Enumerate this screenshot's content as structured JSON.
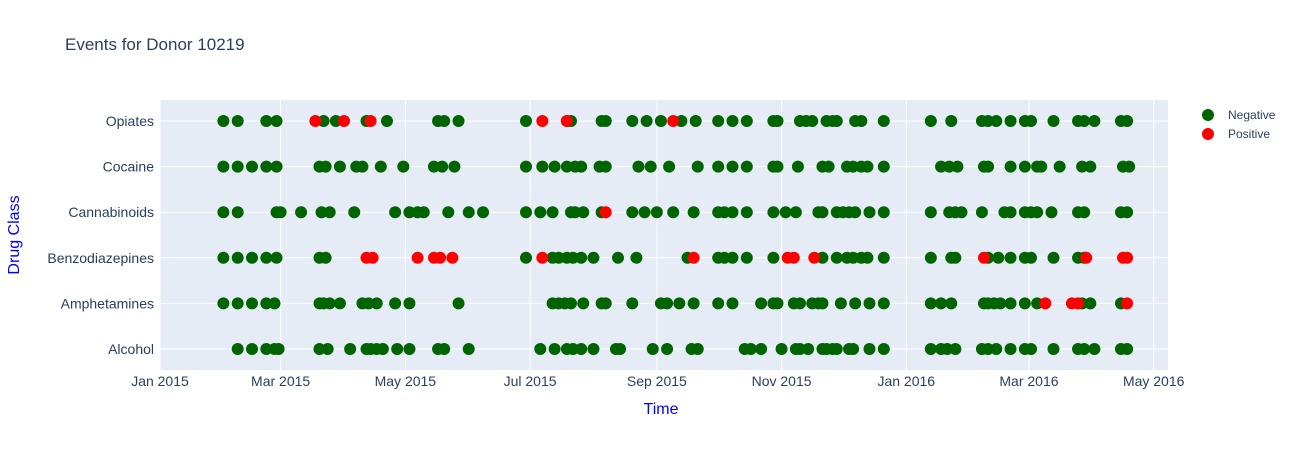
{
  "chart_data": {
    "type": "scatter",
    "title": "Events for Donor 10219",
    "xlabel": "Time",
    "ylabel": "Drug Class",
    "xlim": [
      "2015-01-01",
      "2016-05-08"
    ],
    "x_ticks": [
      "2015-01-01",
      "2015-03-01",
      "2015-05-01",
      "2015-07-01",
      "2015-09-01",
      "2015-11-01",
      "2016-01-01",
      "2016-03-01",
      "2016-05-01"
    ],
    "x_tick_labels": [
      "Jan 2015",
      "Mar 2015",
      "May 2015",
      "Jul 2015",
      "Sep 2015",
      "Nov 2015",
      "Jan 2016",
      "Mar 2016",
      "May 2016"
    ],
    "categories": [
      "Alcohol",
      "Amphetamines",
      "Benzodiazepines",
      "Cannabinoids",
      "Cocaine",
      "Opiates"
    ],
    "legend_position": "top-right",
    "grid": true,
    "colors": {
      "Negative": "#006400",
      "Positive": "#ff0000",
      "plot_bg": "#e5ecf6",
      "axis_title": "#0000ff"
    },
    "series": [
      {
        "name": "Negative",
        "points": {
          "Opiates": [
            "2015-02-01",
            "2015-02-08",
            "2015-02-22",
            "2015-02-27",
            "2015-03-22",
            "2015-03-28",
            "2015-04-12",
            "2015-04-22",
            "2015-05-17",
            "2015-05-20",
            "2015-05-27",
            "2015-06-29",
            "2015-07-19",
            "2015-07-21",
            "2015-08-05",
            "2015-08-07",
            "2015-08-20",
            "2015-08-27",
            "2015-09-03",
            "2015-09-13",
            "2015-09-20",
            "2015-10-01",
            "2015-10-08",
            "2015-10-15",
            "2015-10-28",
            "2015-10-30",
            "2015-11-10",
            "2015-11-13",
            "2015-11-16",
            "2015-11-23",
            "2015-11-26",
            "2015-11-28",
            "2015-12-07",
            "2015-12-10",
            "2015-12-21",
            "2016-01-13",
            "2016-01-23",
            "2016-02-07",
            "2016-02-10",
            "2016-02-14",
            "2016-02-21",
            "2016-02-28",
            "2016-03-02",
            "2016-03-13",
            "2016-03-25",
            "2016-03-28",
            "2016-04-02",
            "2016-04-15",
            "2016-04-18"
          ],
          "Cocaine": [
            "2015-02-01",
            "2015-02-08",
            "2015-02-15",
            "2015-02-22",
            "2015-02-27",
            "2015-03-20",
            "2015-03-23",
            "2015-03-30",
            "2015-04-07",
            "2015-04-10",
            "2015-04-19",
            "2015-04-30",
            "2015-05-15",
            "2015-05-19",
            "2015-05-25",
            "2015-06-29",
            "2015-07-07",
            "2015-07-13",
            "2015-07-19",
            "2015-07-23",
            "2015-07-26",
            "2015-08-04",
            "2015-08-07",
            "2015-08-23",
            "2015-08-29",
            "2015-09-07",
            "2015-09-21",
            "2015-10-01",
            "2015-10-08",
            "2015-10-15",
            "2015-10-28",
            "2015-10-30",
            "2015-11-09",
            "2015-11-21",
            "2015-11-24",
            "2015-12-03",
            "2015-12-06",
            "2015-12-10",
            "2015-12-13",
            "2015-12-21",
            "2016-01-18",
            "2016-01-22",
            "2016-01-26",
            "2016-02-08",
            "2016-02-10",
            "2016-02-21",
            "2016-02-28",
            "2016-03-05",
            "2016-03-07",
            "2016-03-16",
            "2016-03-27",
            "2016-03-31",
            "2016-04-16",
            "2016-04-19"
          ],
          "Cannabinoids": [
            "2015-02-01",
            "2015-02-08",
            "2015-02-27",
            "2015-03-01",
            "2015-03-11",
            "2015-03-21",
            "2015-03-25",
            "2015-04-06",
            "2015-04-26",
            "2015-05-03",
            "2015-05-07",
            "2015-05-10",
            "2015-05-22",
            "2015-06-01",
            "2015-06-08",
            "2015-06-29",
            "2015-07-06",
            "2015-07-12",
            "2015-07-21",
            "2015-07-23",
            "2015-07-27",
            "2015-08-05",
            "2015-08-20",
            "2015-08-26",
            "2015-09-01",
            "2015-09-09",
            "2015-09-19",
            "2015-10-01",
            "2015-10-04",
            "2015-10-08",
            "2015-10-15",
            "2015-10-28",
            "2015-11-03",
            "2015-11-08",
            "2015-11-19",
            "2015-11-21",
            "2015-11-28",
            "2015-12-01",
            "2015-12-04",
            "2015-12-07",
            "2015-12-14",
            "2015-12-21",
            "2016-01-13",
            "2016-01-22",
            "2016-01-25",
            "2016-01-28",
            "2016-02-07",
            "2016-02-18",
            "2016-02-21",
            "2016-02-28",
            "2016-03-02",
            "2016-03-05",
            "2016-03-12",
            "2016-03-25",
            "2016-03-28",
            "2016-04-15",
            "2016-04-18"
          ],
          "Benzodiazepines": [
            "2015-02-01",
            "2015-02-08",
            "2015-02-15",
            "2015-02-22",
            "2015-02-27",
            "2015-03-20",
            "2015-03-23",
            "2015-06-29",
            "2015-07-12",
            "2015-07-15",
            "2015-07-19",
            "2015-07-22",
            "2015-07-26",
            "2015-08-01",
            "2015-08-13",
            "2015-08-22",
            "2015-09-16",
            "2015-10-01",
            "2015-10-04",
            "2015-10-08",
            "2015-10-15",
            "2015-10-28",
            "2015-11-21",
            "2015-11-28",
            "2015-12-03",
            "2015-12-06",
            "2015-12-10",
            "2015-12-13",
            "2015-12-21",
            "2016-01-13",
            "2016-01-23",
            "2016-01-25",
            "2016-02-10",
            "2016-02-15",
            "2016-02-21",
            "2016-02-28",
            "2016-03-02",
            "2016-03-13",
            "2016-03-25",
            "2016-03-28"
          ],
          "Amphetamines": [
            "2015-02-01",
            "2015-02-08",
            "2015-02-15",
            "2015-02-22",
            "2015-02-26",
            "2015-03-20",
            "2015-03-22",
            "2015-03-25",
            "2015-03-30",
            "2015-04-10",
            "2015-04-13",
            "2015-04-17",
            "2015-04-26",
            "2015-05-03",
            "2015-05-27",
            "2015-07-12",
            "2015-07-15",
            "2015-07-18",
            "2015-07-21",
            "2015-07-27",
            "2015-08-05",
            "2015-08-07",
            "2015-08-20",
            "2015-09-03",
            "2015-09-06",
            "2015-09-12",
            "2015-09-19",
            "2015-10-01",
            "2015-10-08",
            "2015-10-22",
            "2015-10-28",
            "2015-10-30",
            "2015-11-07",
            "2015-11-10",
            "2015-11-16",
            "2015-11-19",
            "2015-11-21",
            "2015-11-30",
            "2015-12-07",
            "2015-12-14",
            "2015-12-21",
            "2016-01-13",
            "2016-01-18",
            "2016-01-23",
            "2016-02-08",
            "2016-02-10",
            "2016-02-13",
            "2016-02-16",
            "2016-02-21",
            "2016-02-28",
            "2016-03-05",
            "2016-03-27",
            "2016-03-31",
            "2016-04-15"
          ],
          "Alcohol": [
            "2015-02-08",
            "2015-02-15",
            "2015-02-22",
            "2015-02-26",
            "2015-02-28",
            "2015-03-20",
            "2015-03-24",
            "2015-04-04",
            "2015-04-12",
            "2015-04-14",
            "2015-04-17",
            "2015-04-20",
            "2015-04-27",
            "2015-05-03",
            "2015-05-17",
            "2015-05-20",
            "2015-06-01",
            "2015-07-06",
            "2015-07-13",
            "2015-07-19",
            "2015-07-22",
            "2015-07-26",
            "2015-08-01",
            "2015-08-12",
            "2015-08-14",
            "2015-08-30",
            "2015-09-06",
            "2015-09-18",
            "2015-09-21",
            "2015-10-14",
            "2015-10-17",
            "2015-10-22",
            "2015-11-01",
            "2015-11-08",
            "2015-11-10",
            "2015-11-14",
            "2015-11-21",
            "2015-11-23",
            "2015-11-26",
            "2015-11-28",
            "2015-12-04",
            "2015-12-06",
            "2015-12-14",
            "2015-12-21",
            "2016-01-13",
            "2016-01-18",
            "2016-01-21",
            "2016-01-25",
            "2016-02-07",
            "2016-02-10",
            "2016-02-14",
            "2016-02-21",
            "2016-02-28",
            "2016-03-02",
            "2016-03-13",
            "2016-03-25",
            "2016-03-28",
            "2016-04-02",
            "2016-04-15",
            "2016-04-18"
          ]
        }
      },
      {
        "name": "Positive",
        "points": {
          "Opiates": [
            "2015-03-18",
            "2015-04-01",
            "2015-04-14",
            "2015-07-07",
            "2015-07-19",
            "2015-09-09"
          ],
          "Cocaine": [],
          "Cannabinoids": [
            "2015-08-07"
          ],
          "Benzodiazepines": [
            "2015-04-12",
            "2015-04-15",
            "2015-05-07",
            "2015-05-15",
            "2015-05-18",
            "2015-05-24",
            "2015-07-07",
            "2015-09-19",
            "2015-11-04",
            "2015-11-07",
            "2015-11-17",
            "2016-02-08",
            "2016-03-29",
            "2016-04-16",
            "2016-04-18"
          ],
          "Amphetamines": [
            "2016-03-09",
            "2016-03-22",
            "2016-03-25",
            "2016-04-18"
          ],
          "Alcohol": []
        }
      }
    ]
  }
}
